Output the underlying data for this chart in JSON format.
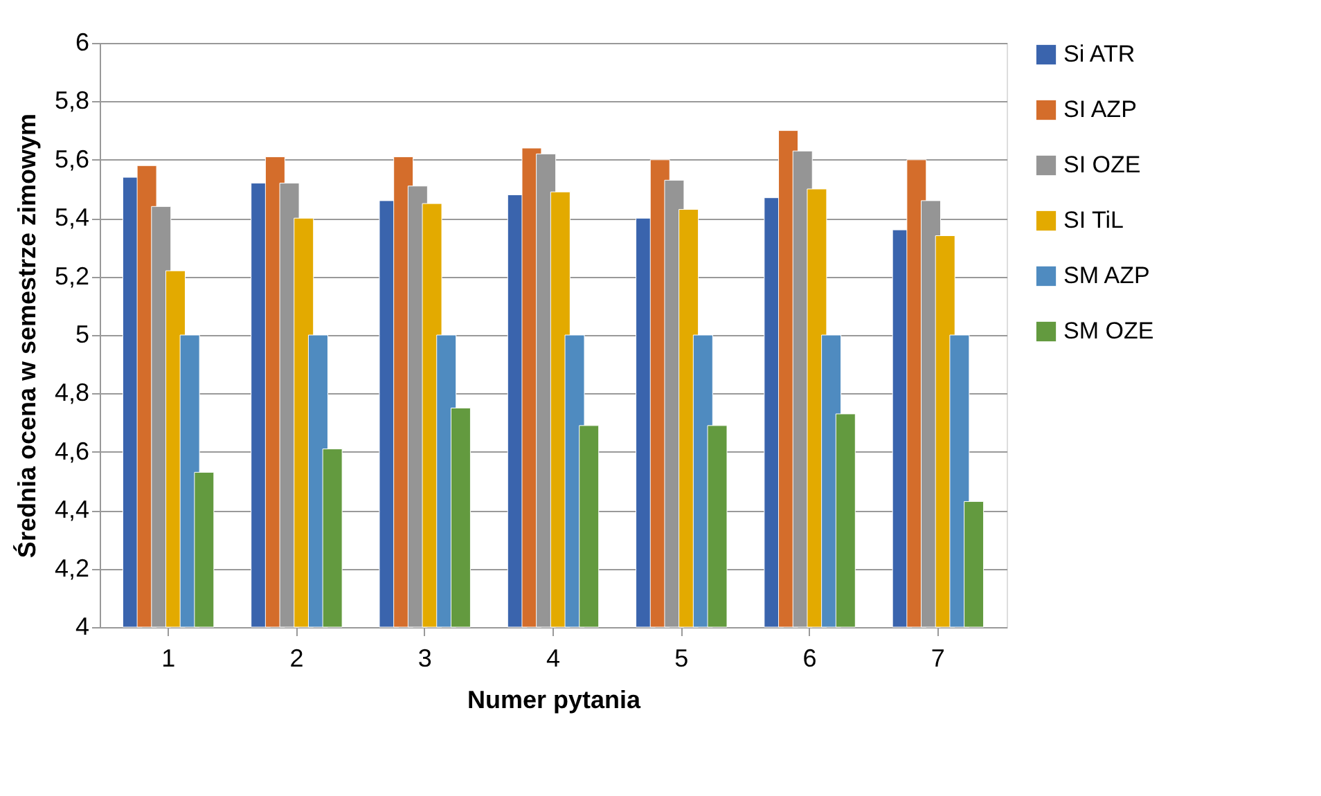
{
  "chart_data": {
    "type": "bar",
    "xlabel": "Numer pytania",
    "ylabel": "Średnia ocena w semestrze zimowym",
    "categories": [
      "1",
      "2",
      "3",
      "4",
      "5",
      "6",
      "7"
    ],
    "series": [
      {
        "name": "Si ATR",
        "color": "#3a64ad",
        "values": [
          5.54,
          5.52,
          5.46,
          5.48,
          5.4,
          5.47,
          5.36
        ]
      },
      {
        "name": "SI AZP",
        "color": "#d46d2b",
        "values": [
          5.58,
          5.61,
          5.61,
          5.64,
          5.6,
          5.7,
          5.6
        ]
      },
      {
        "name": "SI OZE",
        "color": "#959595",
        "values": [
          5.44,
          5.52,
          5.51,
          5.62,
          5.53,
          5.63,
          5.46
        ]
      },
      {
        "name": "SI TiL",
        "color": "#e3aa00",
        "values": [
          5.22,
          5.4,
          5.45,
          5.49,
          5.43,
          5.5,
          5.34
        ]
      },
      {
        "name": "SM AZP",
        "color": "#4f8bc0",
        "values": [
          5.0,
          5.0,
          5.0,
          5.0,
          5.0,
          5.0,
          5.0
        ]
      },
      {
        "name": "SM OZE",
        "color": "#639a3f",
        "values": [
          4.53,
          4.61,
          4.75,
          4.69,
          4.69,
          4.73,
          4.43
        ]
      }
    ],
    "ylim": [
      4,
      6
    ],
    "yticks": [
      {
        "value": 4,
        "label": "4"
      },
      {
        "value": 4.2,
        "label": "4,2"
      },
      {
        "value": 4.4,
        "label": "4,4"
      },
      {
        "value": 4.6,
        "label": "4,6"
      },
      {
        "value": 4.8,
        "label": "4,8"
      },
      {
        "value": 5,
        "label": "5"
      },
      {
        "value": 5.2,
        "label": "5,2"
      },
      {
        "value": 5.4,
        "label": "5,4"
      },
      {
        "value": 5.6,
        "label": "5,6"
      },
      {
        "value": 5.8,
        "label": "5,8"
      },
      {
        "value": 6,
        "label": "6"
      }
    ],
    "grid": "y",
    "legend": "right"
  }
}
